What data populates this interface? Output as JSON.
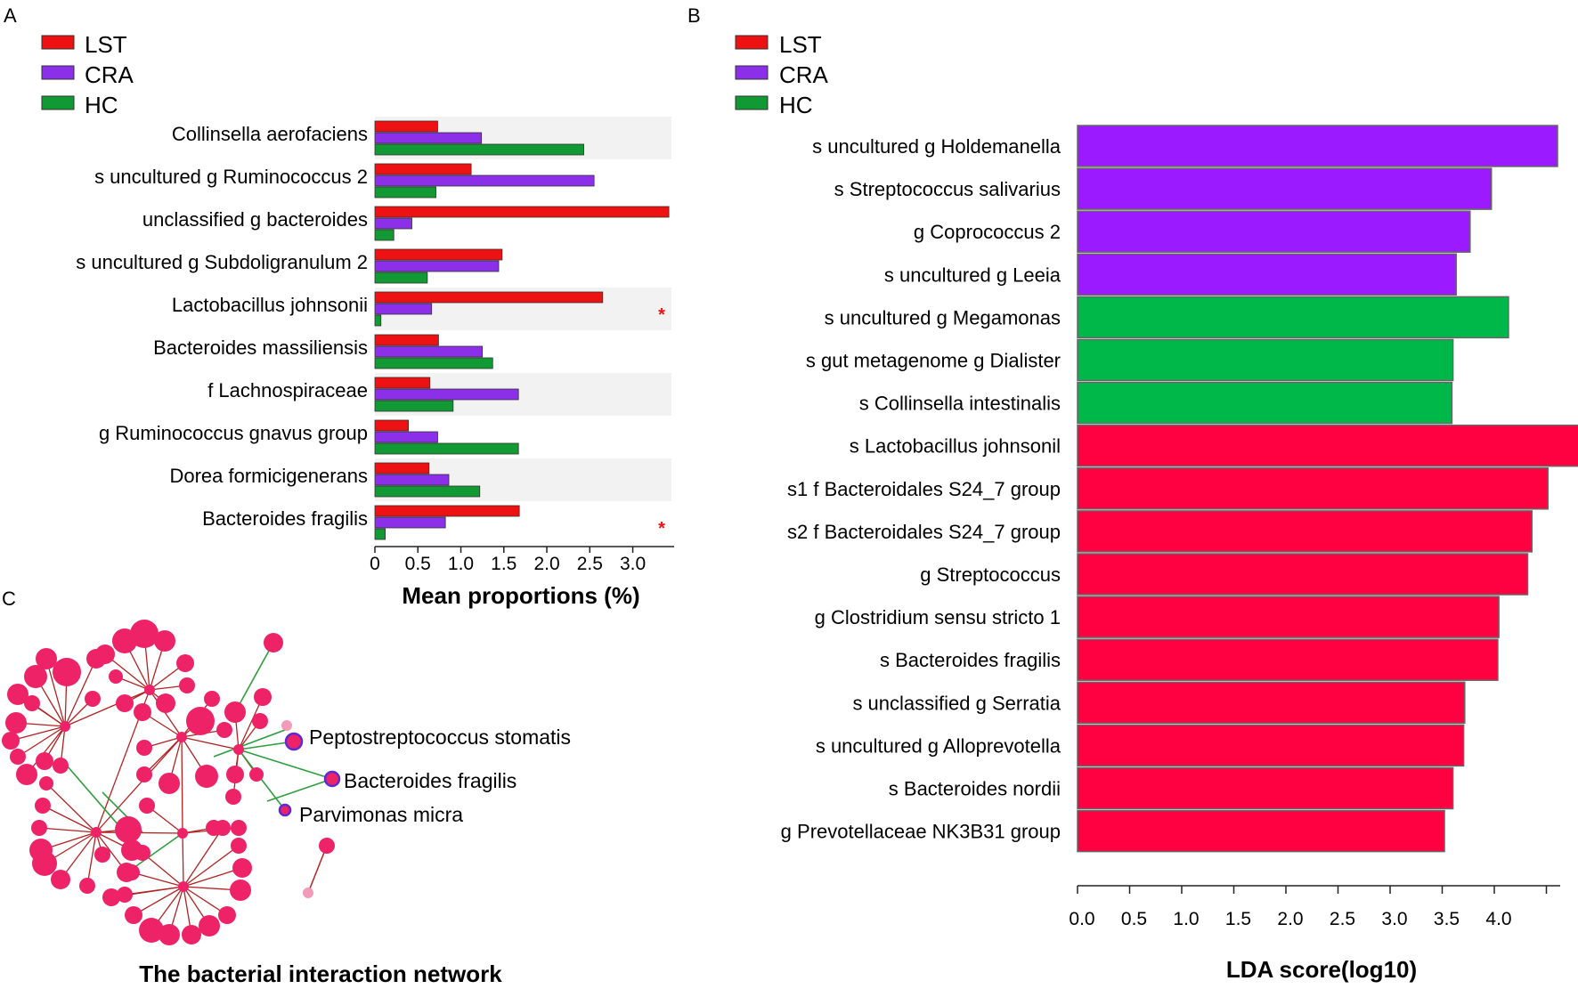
{
  "colors": {
    "LST": "#ee1111",
    "CRA": "#8b2fe8",
    "HC": "#119933",
    "lda_red": "#ff0040",
    "lda_purple": "#9b1aff",
    "lda_green": "#00b84a",
    "node": "#ee2266",
    "node_light": "#f29ab8",
    "edge_red": "#b22222",
    "edge_green": "#2e9e3e",
    "band": "#f2f2f2",
    "star": "#ee1111"
  },
  "panels": {
    "A": {
      "letter": "A",
      "legend": [
        "LST",
        "CRA",
        "HC"
      ],
      "star": "*",
      "chart_data": {
        "type": "bar",
        "orientation": "horizontal",
        "categories": [
          "Collinsella aerofaciens",
          "s uncultured g Ruminococcus 2",
          "unclassified g bacteroides",
          "s uncultured g Subdoligranulum 2",
          "Lactobacillus johnsonii",
          "Bacteroides massiliensis",
          "f Lachnospiraceae",
          "g Ruminococcus gnavus group",
          "Dorea formicigenerans",
          "Bacteroides fragilis"
        ],
        "series": [
          {
            "name": "LST",
            "values": [
              0.73,
              1.12,
              3.42,
              1.48,
              2.65,
              0.74,
              0.64,
              0.39,
              0.63,
              1.68
            ]
          },
          {
            "name": "CRA",
            "values": [
              1.24,
              2.55,
              0.43,
              1.44,
              0.66,
              1.25,
              1.67,
              0.73,
              0.86,
              0.82
            ]
          },
          {
            "name": "HC",
            "values": [
              2.43,
              0.71,
              0.22,
              0.61,
              0.07,
              1.37,
              0.91,
              1.67,
              1.22,
              0.12
            ]
          }
        ],
        "significant": [
          false,
          false,
          false,
          false,
          true,
          false,
          false,
          false,
          false,
          true
        ],
        "xlabel": "Mean proportions (%)",
        "xticks": [
          "0",
          "0.5",
          "1.0",
          "1.5",
          "2.0",
          "2.5",
          "3.0"
        ],
        "xlim": [
          0,
          3.45
        ],
        "shaded_rows": [
          0,
          4,
          6,
          8
        ]
      }
    },
    "B": {
      "letter": "B",
      "legend": [
        "LST",
        "CRA",
        "HC"
      ],
      "chart_data": {
        "type": "bar",
        "orientation": "horizontal",
        "categories": [
          "s uncultured g Holdemanella",
          "s Streptococcus salivarius",
          "g Coprococcus 2",
          "s uncultured g Leeia",
          "s uncultured g Megamonas",
          "s gut metagenome g Dialister",
          "s Collinsella intestinalis",
          "s Lactobacillus johnsonil",
          "s1 f Bacteroidales S24_7 group",
          "s2 f Bacteroidales S24_7 group",
          "g Streptococcus",
          "g Clostridium sensu stricto 1",
          "s Bacteroides fragilis",
          "s unclassified g Serratia",
          "s uncultured  g Alloprevotella",
          "s Bacteroides nordii",
          "g Prevotellaceae NK3B31 group"
        ],
        "values": [
          4.5,
          3.88,
          3.68,
          3.55,
          4.04,
          3.52,
          3.51,
          4.7,
          4.41,
          4.26,
          4.22,
          3.95,
          3.94,
          3.63,
          3.62,
          3.52,
          3.44
        ],
        "groups": [
          "CRA",
          "CRA",
          "CRA",
          "CRA",
          "HC",
          "HC",
          "HC",
          "LST",
          "LST",
          "LST",
          "LST",
          "LST",
          "LST",
          "LST",
          "LST",
          "LST",
          "LST"
        ],
        "xlabel": "LDA score(log10)",
        "xticks": [
          "0.0",
          "0.5",
          "1.0",
          "1.5",
          "2.0",
          "2.5",
          "3.0",
          "3.5",
          "4.0"
        ],
        "xlim": [
          0,
          4.55
        ]
      }
    },
    "C": {
      "letter": "C",
      "title": "The bacterial interaction network",
      "labels": [
        "Peptostreptococcus stomatis",
        "Bacteroides fragilis",
        "Parvimonas micra"
      ]
    }
  }
}
